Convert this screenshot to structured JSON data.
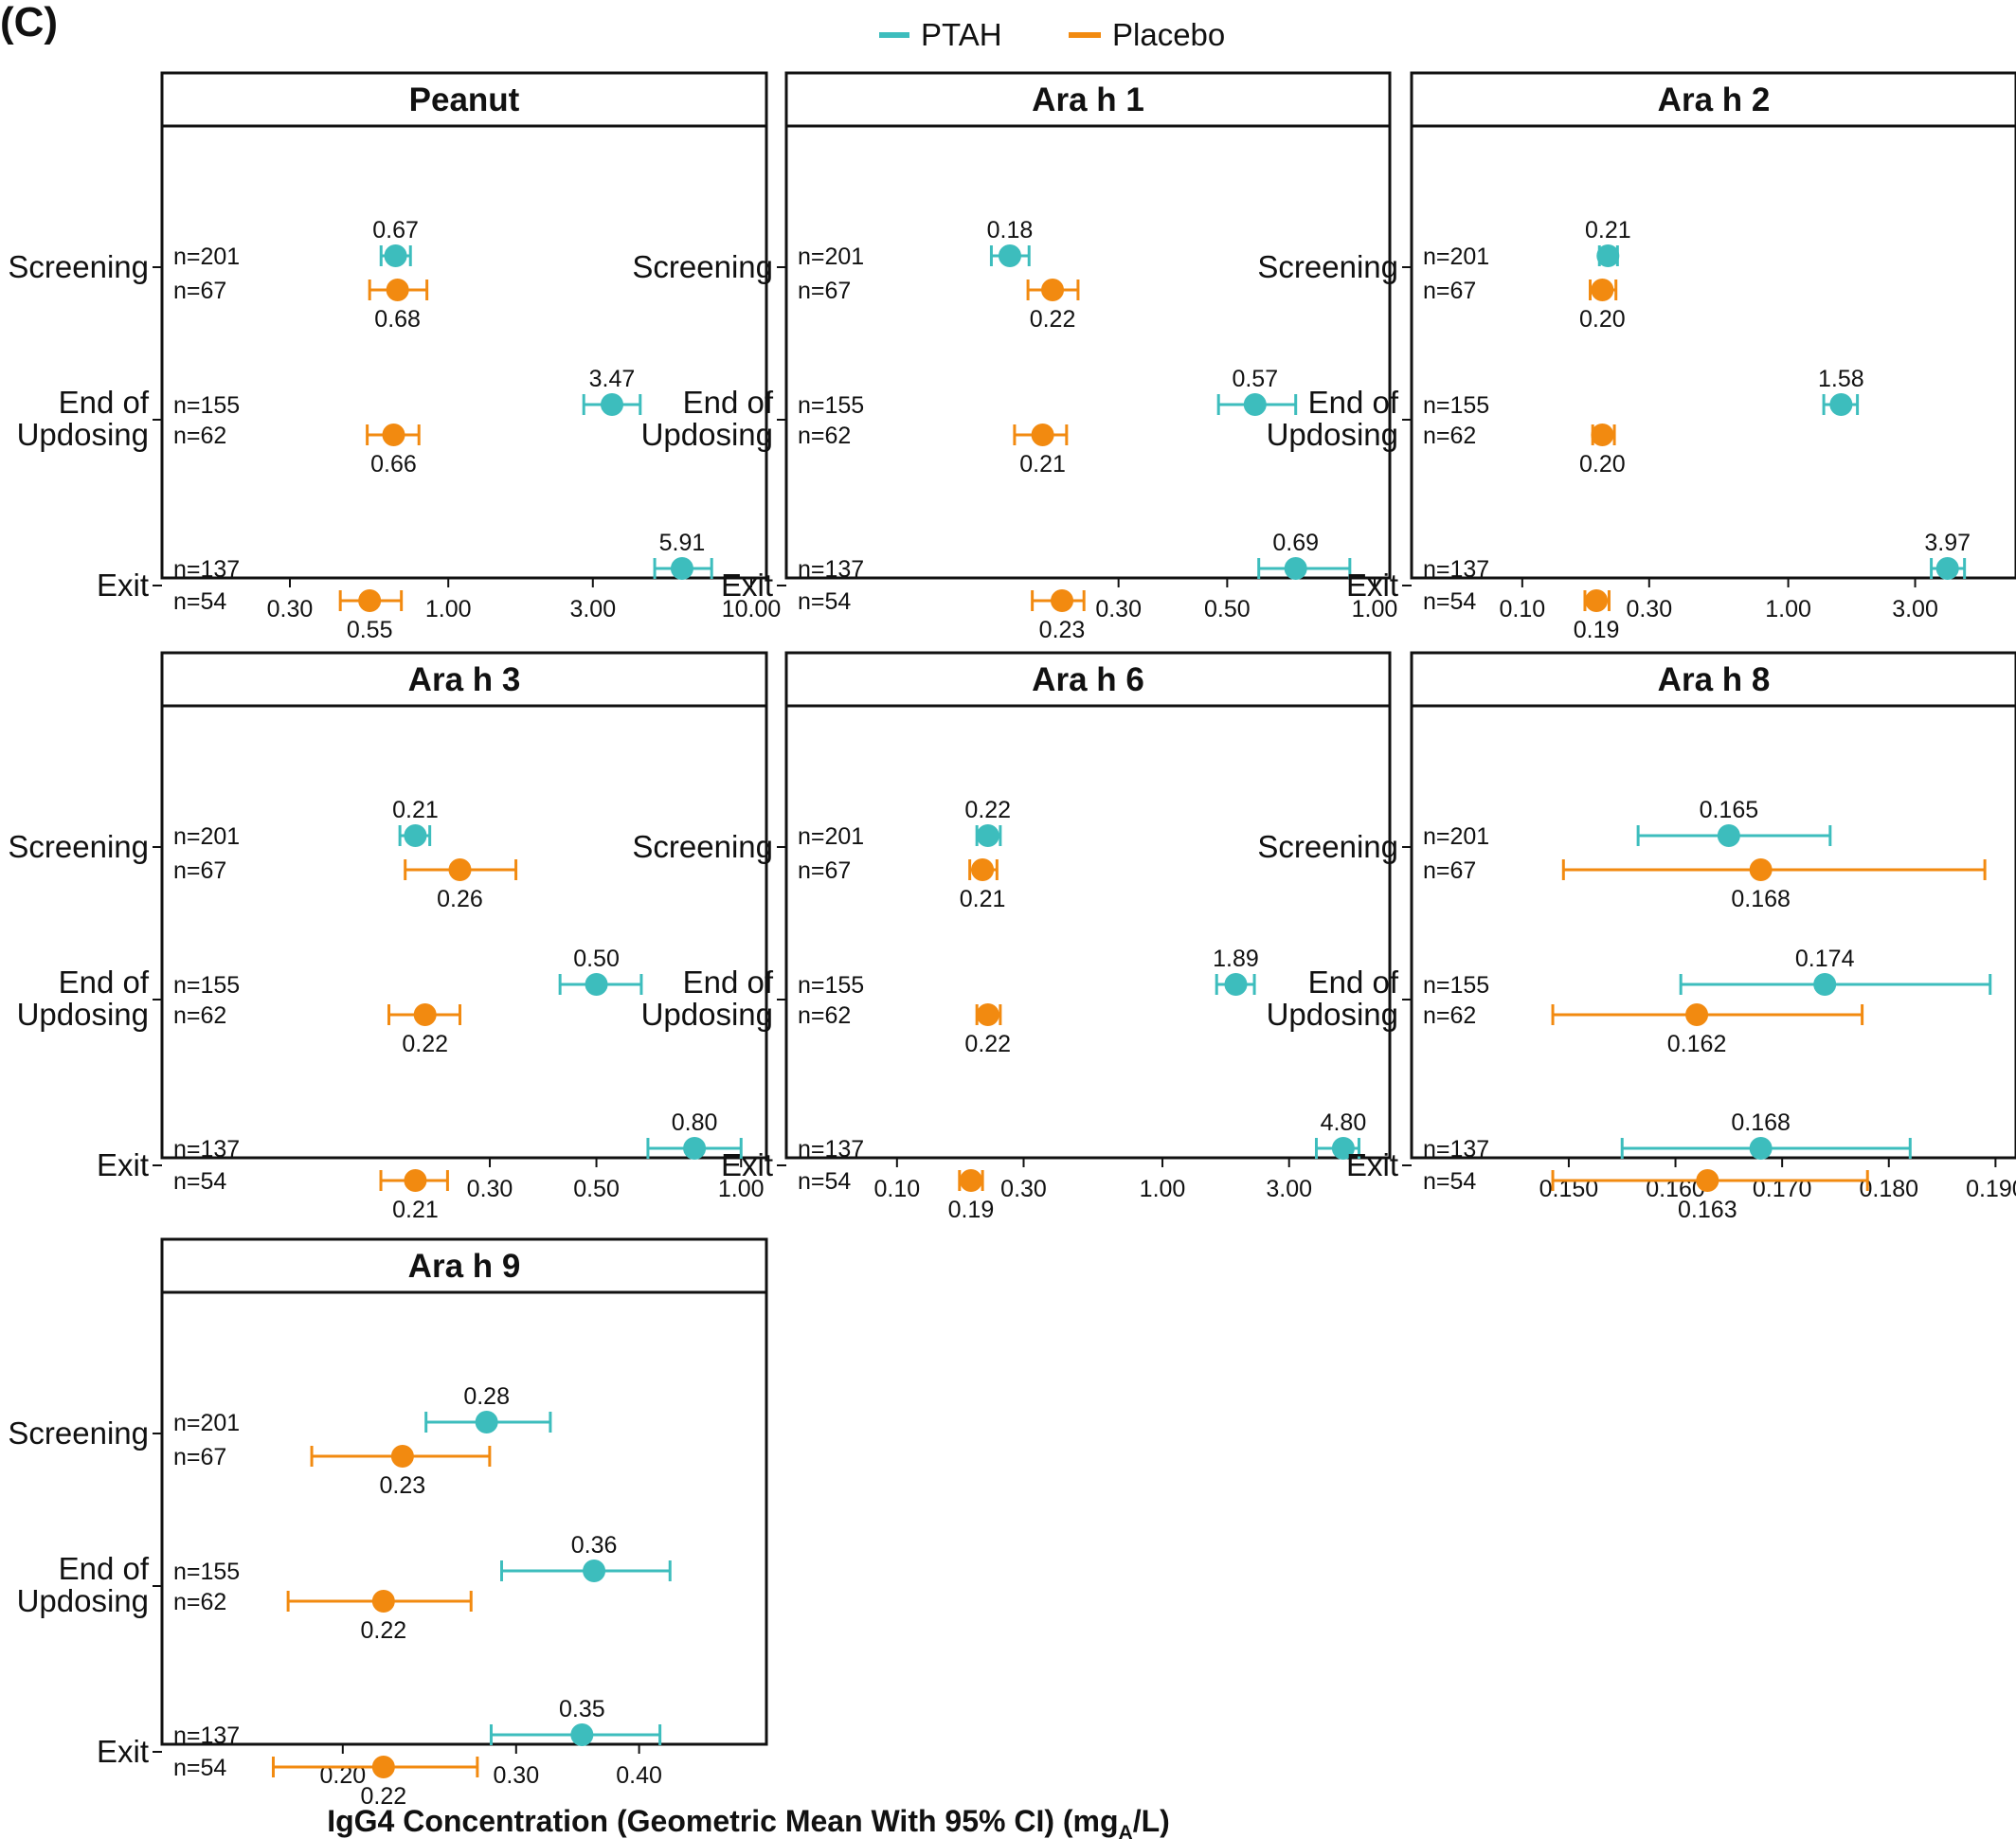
{
  "panel_letter": "(C)",
  "legend": [
    {
      "label": "PTAH",
      "color": "#3dbdbd"
    },
    {
      "label": "Placebo",
      "color": "#f28a10"
    }
  ],
  "x_axis_title_main": "IgG4 Concentration (Geometric Mean With 95% CI) (mg",
  "x_axis_title_sub": "A",
  "x_axis_title_end": "/L)",
  "row_labels": [
    [
      "Screening"
    ],
    [
      "End of",
      "Updosing"
    ],
    [
      "Exit"
    ]
  ],
  "colors": {
    "ptah": "#3dbdbd",
    "placebo": "#f28a10"
  },
  "chart_data": [
    {
      "type": "scatter",
      "title": "Peanut",
      "scale": "log",
      "xlim": [
        0.24,
        10.0
      ],
      "ticks": [
        0.3,
        1.0,
        3.0,
        10.0
      ],
      "tick_labels": [
        "0.30",
        "1.00",
        "3.00",
        "10.00"
      ],
      "rows": [
        {
          "category": "Screening",
          "ptah": {
            "n": "n=201",
            "mean": 0.67,
            "lo": 0.6,
            "hi": 0.75,
            "label": "0.67"
          },
          "placebo": {
            "n": "n=67",
            "mean": 0.68,
            "lo": 0.55,
            "hi": 0.85,
            "label": "0.68"
          }
        },
        {
          "category": "End of Updosing",
          "ptah": {
            "n": "n=155",
            "mean": 3.47,
            "lo": 2.8,
            "hi": 4.3,
            "label": "3.47"
          },
          "placebo": {
            "n": "n=62",
            "mean": 0.66,
            "lo": 0.54,
            "hi": 0.8,
            "label": "0.66"
          }
        },
        {
          "category": "Exit",
          "ptah": {
            "n": "n=137",
            "mean": 5.91,
            "lo": 4.8,
            "hi": 7.4,
            "label": "5.91"
          },
          "placebo": {
            "n": "n=54",
            "mean": 0.55,
            "lo": 0.44,
            "hi": 0.7,
            "label": "0.55"
          }
        }
      ]
    },
    {
      "type": "scatter",
      "title": "Ara h 1",
      "scale": "log",
      "xlim": [
        0.1,
        1.0
      ],
      "ticks": [
        0.3,
        0.5,
        1.0
      ],
      "tick_labels": [
        "0.30",
        "0.50",
        "1.00"
      ],
      "rows": [
        {
          "category": "Screening",
          "ptah": {
            "n": "n=201",
            "mean": 0.18,
            "lo": 0.165,
            "hi": 0.197,
            "label": "0.18"
          },
          "placebo": {
            "n": "n=67",
            "mean": 0.22,
            "lo": 0.196,
            "hi": 0.248,
            "label": "0.22"
          }
        },
        {
          "category": "End of Updosing",
          "ptah": {
            "n": "n=155",
            "mean": 0.57,
            "lo": 0.48,
            "hi": 0.69,
            "label": "0.57"
          },
          "placebo": {
            "n": "n=62",
            "mean": 0.21,
            "lo": 0.184,
            "hi": 0.235,
            "label": "0.21"
          }
        },
        {
          "category": "Exit",
          "ptah": {
            "n": "n=137",
            "mean": 0.69,
            "lo": 0.58,
            "hi": 0.89,
            "label": "0.69"
          },
          "placebo": {
            "n": "n=54",
            "mean": 0.23,
            "lo": 0.2,
            "hi": 0.255,
            "label": "0.23"
          }
        }
      ]
    },
    {
      "type": "scatter",
      "title": "Ara h 2",
      "scale": "log",
      "xlim": [
        0.09,
        6.3
      ],
      "ticks": [
        0.1,
        0.3,
        1.0,
        3.0
      ],
      "tick_labels": [
        "0.10",
        "0.30",
        "1.00",
        "3.00"
      ],
      "rows": [
        {
          "category": "Screening",
          "ptah": {
            "n": "n=201",
            "mean": 0.21,
            "lo": 0.195,
            "hi": 0.228,
            "label": "0.21"
          },
          "placebo": {
            "n": "n=67",
            "mean": 0.2,
            "lo": 0.18,
            "hi": 0.225,
            "label": "0.20"
          }
        },
        {
          "category": "End of Updosing",
          "ptah": {
            "n": "n=155",
            "mean": 1.58,
            "lo": 1.36,
            "hi": 1.82,
            "label": "1.58"
          },
          "placebo": {
            "n": "n=62",
            "mean": 0.2,
            "lo": 0.184,
            "hi": 0.222,
            "label": "0.20"
          }
        },
        {
          "category": "Exit",
          "ptah": {
            "n": "n=137",
            "mean": 3.97,
            "lo": 3.45,
            "hi": 4.6,
            "label": "3.97"
          },
          "placebo": {
            "n": "n=54",
            "mean": 0.19,
            "lo": 0.172,
            "hi": 0.212,
            "label": "0.19"
          }
        }
      ]
    },
    {
      "type": "scatter",
      "title": "Ara h 3",
      "scale": "log",
      "xlim": [
        0.1,
        1.05
      ],
      "ticks": [
        0.3,
        0.5,
        1.0
      ],
      "tick_labels": [
        "0.30",
        "0.50",
        "1.00"
      ],
      "rows": [
        {
          "category": "Screening",
          "ptah": {
            "n": "n=201",
            "mean": 0.21,
            "lo": 0.195,
            "hi": 0.225,
            "label": "0.21"
          },
          "placebo": {
            "n": "n=67",
            "mean": 0.26,
            "lo": 0.2,
            "hi": 0.34,
            "label": "0.26"
          }
        },
        {
          "category": "End of Updosing",
          "ptah": {
            "n": "n=155",
            "mean": 0.5,
            "lo": 0.42,
            "hi": 0.62,
            "label": "0.50"
          },
          "placebo": {
            "n": "n=62",
            "mean": 0.22,
            "lo": 0.185,
            "hi": 0.26,
            "label": "0.22"
          }
        },
        {
          "category": "Exit",
          "ptah": {
            "n": "n=137",
            "mean": 0.8,
            "lo": 0.64,
            "hi": 1.0,
            "label": "0.80"
          },
          "placebo": {
            "n": "n=54",
            "mean": 0.21,
            "lo": 0.178,
            "hi": 0.245,
            "label": "0.21"
          }
        }
      ]
    },
    {
      "type": "scatter",
      "title": "Ara h 6",
      "scale": "log",
      "xlim": [
        0.09,
        6.3
      ],
      "ticks": [
        0.1,
        0.3,
        1.0,
        3.0
      ],
      "tick_labels": [
        "0.10",
        "0.30",
        "1.00",
        "3.00"
      ],
      "rows": [
        {
          "category": "Screening",
          "ptah": {
            "n": "n=201",
            "mean": 0.22,
            "lo": 0.2,
            "hi": 0.245,
            "label": "0.22"
          },
          "placebo": {
            "n": "n=67",
            "mean": 0.21,
            "lo": 0.188,
            "hi": 0.238,
            "label": "0.21"
          }
        },
        {
          "category": "End of Updosing",
          "ptah": {
            "n": "n=155",
            "mean": 1.89,
            "lo": 1.6,
            "hi": 2.22,
            "label": "1.89"
          },
          "placebo": {
            "n": "n=62",
            "mean": 0.22,
            "lo": 0.2,
            "hi": 0.245,
            "label": "0.22"
          }
        },
        {
          "category": "Exit",
          "ptah": {
            "n": "n=137",
            "mean": 4.8,
            "lo": 3.8,
            "hi": 5.5,
            "label": "4.80"
          },
          "placebo": {
            "n": "n=54",
            "mean": 0.19,
            "lo": 0.172,
            "hi": 0.21,
            "label": "0.19"
          }
        }
      ]
    },
    {
      "type": "scatter",
      "title": "Ara h 8",
      "scale": "linear",
      "xlim": [
        0.1445,
        0.1905
      ],
      "ticks": [
        0.15,
        0.16,
        0.17,
        0.18,
        0.19
      ],
      "tick_labels": [
        "0.150",
        "0.160",
        "0.170",
        "0.180",
        "0.190"
      ],
      "rows": [
        {
          "category": "Screening",
          "ptah": {
            "n": "n=201",
            "mean": 0.165,
            "lo": 0.1565,
            "hi": 0.1745,
            "label": "0.165"
          },
          "placebo": {
            "n": "n=67",
            "mean": 0.168,
            "lo": 0.1495,
            "hi": 0.189,
            "label": "0.168"
          }
        },
        {
          "category": "End of Updosing",
          "ptah": {
            "n": "n=155",
            "mean": 0.174,
            "lo": 0.1605,
            "hi": 0.1895,
            "label": "0.174"
          },
          "placebo": {
            "n": "n=62",
            "mean": 0.162,
            "lo": 0.1485,
            "hi": 0.1775,
            "label": "0.162"
          }
        },
        {
          "category": "Exit",
          "ptah": {
            "n": "n=137",
            "mean": 0.168,
            "lo": 0.155,
            "hi": 0.182,
            "label": "0.168"
          },
          "placebo": {
            "n": "n=54",
            "mean": 0.163,
            "lo": 0.1485,
            "hi": 0.178,
            "label": "0.163"
          }
        }
      ]
    },
    {
      "type": "scatter",
      "title": "Ara h 9",
      "scale": "log",
      "xlim": [
        0.165,
        0.52
      ],
      "ticks": [
        0.2,
        0.3,
        0.4
      ],
      "tick_labels": [
        "0.20",
        "0.30",
        "0.40"
      ],
      "rows": [
        {
          "category": "Screening",
          "ptah": {
            "n": "n=201",
            "mean": 0.28,
            "lo": 0.243,
            "hi": 0.325,
            "label": "0.28"
          },
          "placebo": {
            "n": "n=67",
            "mean": 0.23,
            "lo": 0.186,
            "hi": 0.282,
            "label": "0.23"
          }
        },
        {
          "category": "End of Updosing",
          "ptah": {
            "n": "n=155",
            "mean": 0.36,
            "lo": 0.29,
            "hi": 0.43,
            "label": "0.36"
          },
          "placebo": {
            "n": "n=62",
            "mean": 0.22,
            "lo": 0.176,
            "hi": 0.27,
            "label": "0.22"
          }
        },
        {
          "category": "Exit",
          "ptah": {
            "n": "n=137",
            "mean": 0.35,
            "lo": 0.283,
            "hi": 0.42,
            "label": "0.35"
          },
          "placebo": {
            "n": "n=54",
            "mean": 0.22,
            "lo": 0.17,
            "hi": 0.274,
            "label": "0.22"
          }
        }
      ]
    }
  ]
}
